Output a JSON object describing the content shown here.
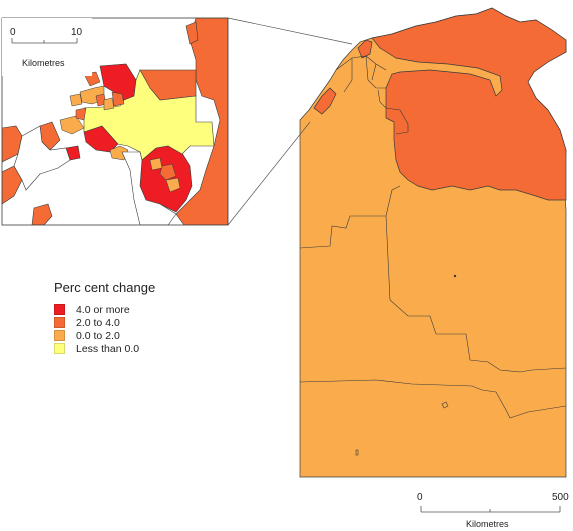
{
  "colors": {
    "cat_4_plus": "#EE1D23",
    "cat_2_4": "#F46B35",
    "cat_0_2": "#FAAC4D",
    "cat_neg": "#FFFF7E",
    "land_outside": "#FAAC4D",
    "border": "#3a3a3a",
    "sea": "#ffffff"
  },
  "inset_scale": {
    "start": "0",
    "end": "10",
    "unit": "Kilometres"
  },
  "main_scale": {
    "start": "0",
    "end": "500",
    "unit": "Kilometres"
  },
  "legend": {
    "title": "Perc cent change",
    "items": [
      {
        "label": "4.0 or more",
        "color": "#EE1D23"
      },
      {
        "label": "2.0 to 4.0",
        "color": "#F46B35"
      },
      {
        "label": "0.0 to 2.0",
        "color": "#FAAC4D"
      },
      {
        "label": "Less than 0.0",
        "color": "#FFFF7E"
      }
    ]
  }
}
